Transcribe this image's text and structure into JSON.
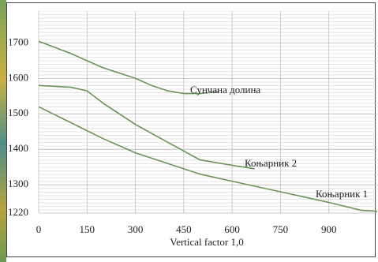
{
  "chart_data": {
    "type": "line",
    "x_label": "Vertical factor 1,0",
    "xlim": [
      0,
      1050
    ],
    "xticks": [
      0,
      150,
      300,
      450,
      600,
      750,
      900
    ],
    "ylim": [
      1220,
      1790
    ],
    "yticks": [
      1220,
      1300,
      1400,
      1500,
      1600,
      1700
    ],
    "grid": true,
    "series": [
      {
        "name": "Сунчана долина",
        "color": "#6a9458",
        "x": [
          0,
          100,
          200,
          300,
          350,
          400,
          450,
          500,
          560
        ],
        "values": [
          1705,
          1670,
          1630,
          1600,
          1580,
          1565,
          1557,
          1557,
          1563
        ]
      },
      {
        "name": "Коњарник 2",
        "color": "#6a9458",
        "x": [
          0,
          100,
          150,
          200,
          300,
          400,
          500,
          600,
          670
        ],
        "values": [
          1580,
          1575,
          1565,
          1530,
          1470,
          1420,
          1370,
          1355,
          1345
        ]
      },
      {
        "name": "Коњарник 1",
        "color": "#6a9458",
        "x": [
          0,
          100,
          200,
          300,
          400,
          500,
          600,
          700,
          800,
          900,
          1000,
          1050
        ],
        "values": [
          1520,
          1475,
          1430,
          1390,
          1360,
          1330,
          1310,
          1290,
          1270,
          1250,
          1228,
          1225
        ]
      }
    ]
  }
}
